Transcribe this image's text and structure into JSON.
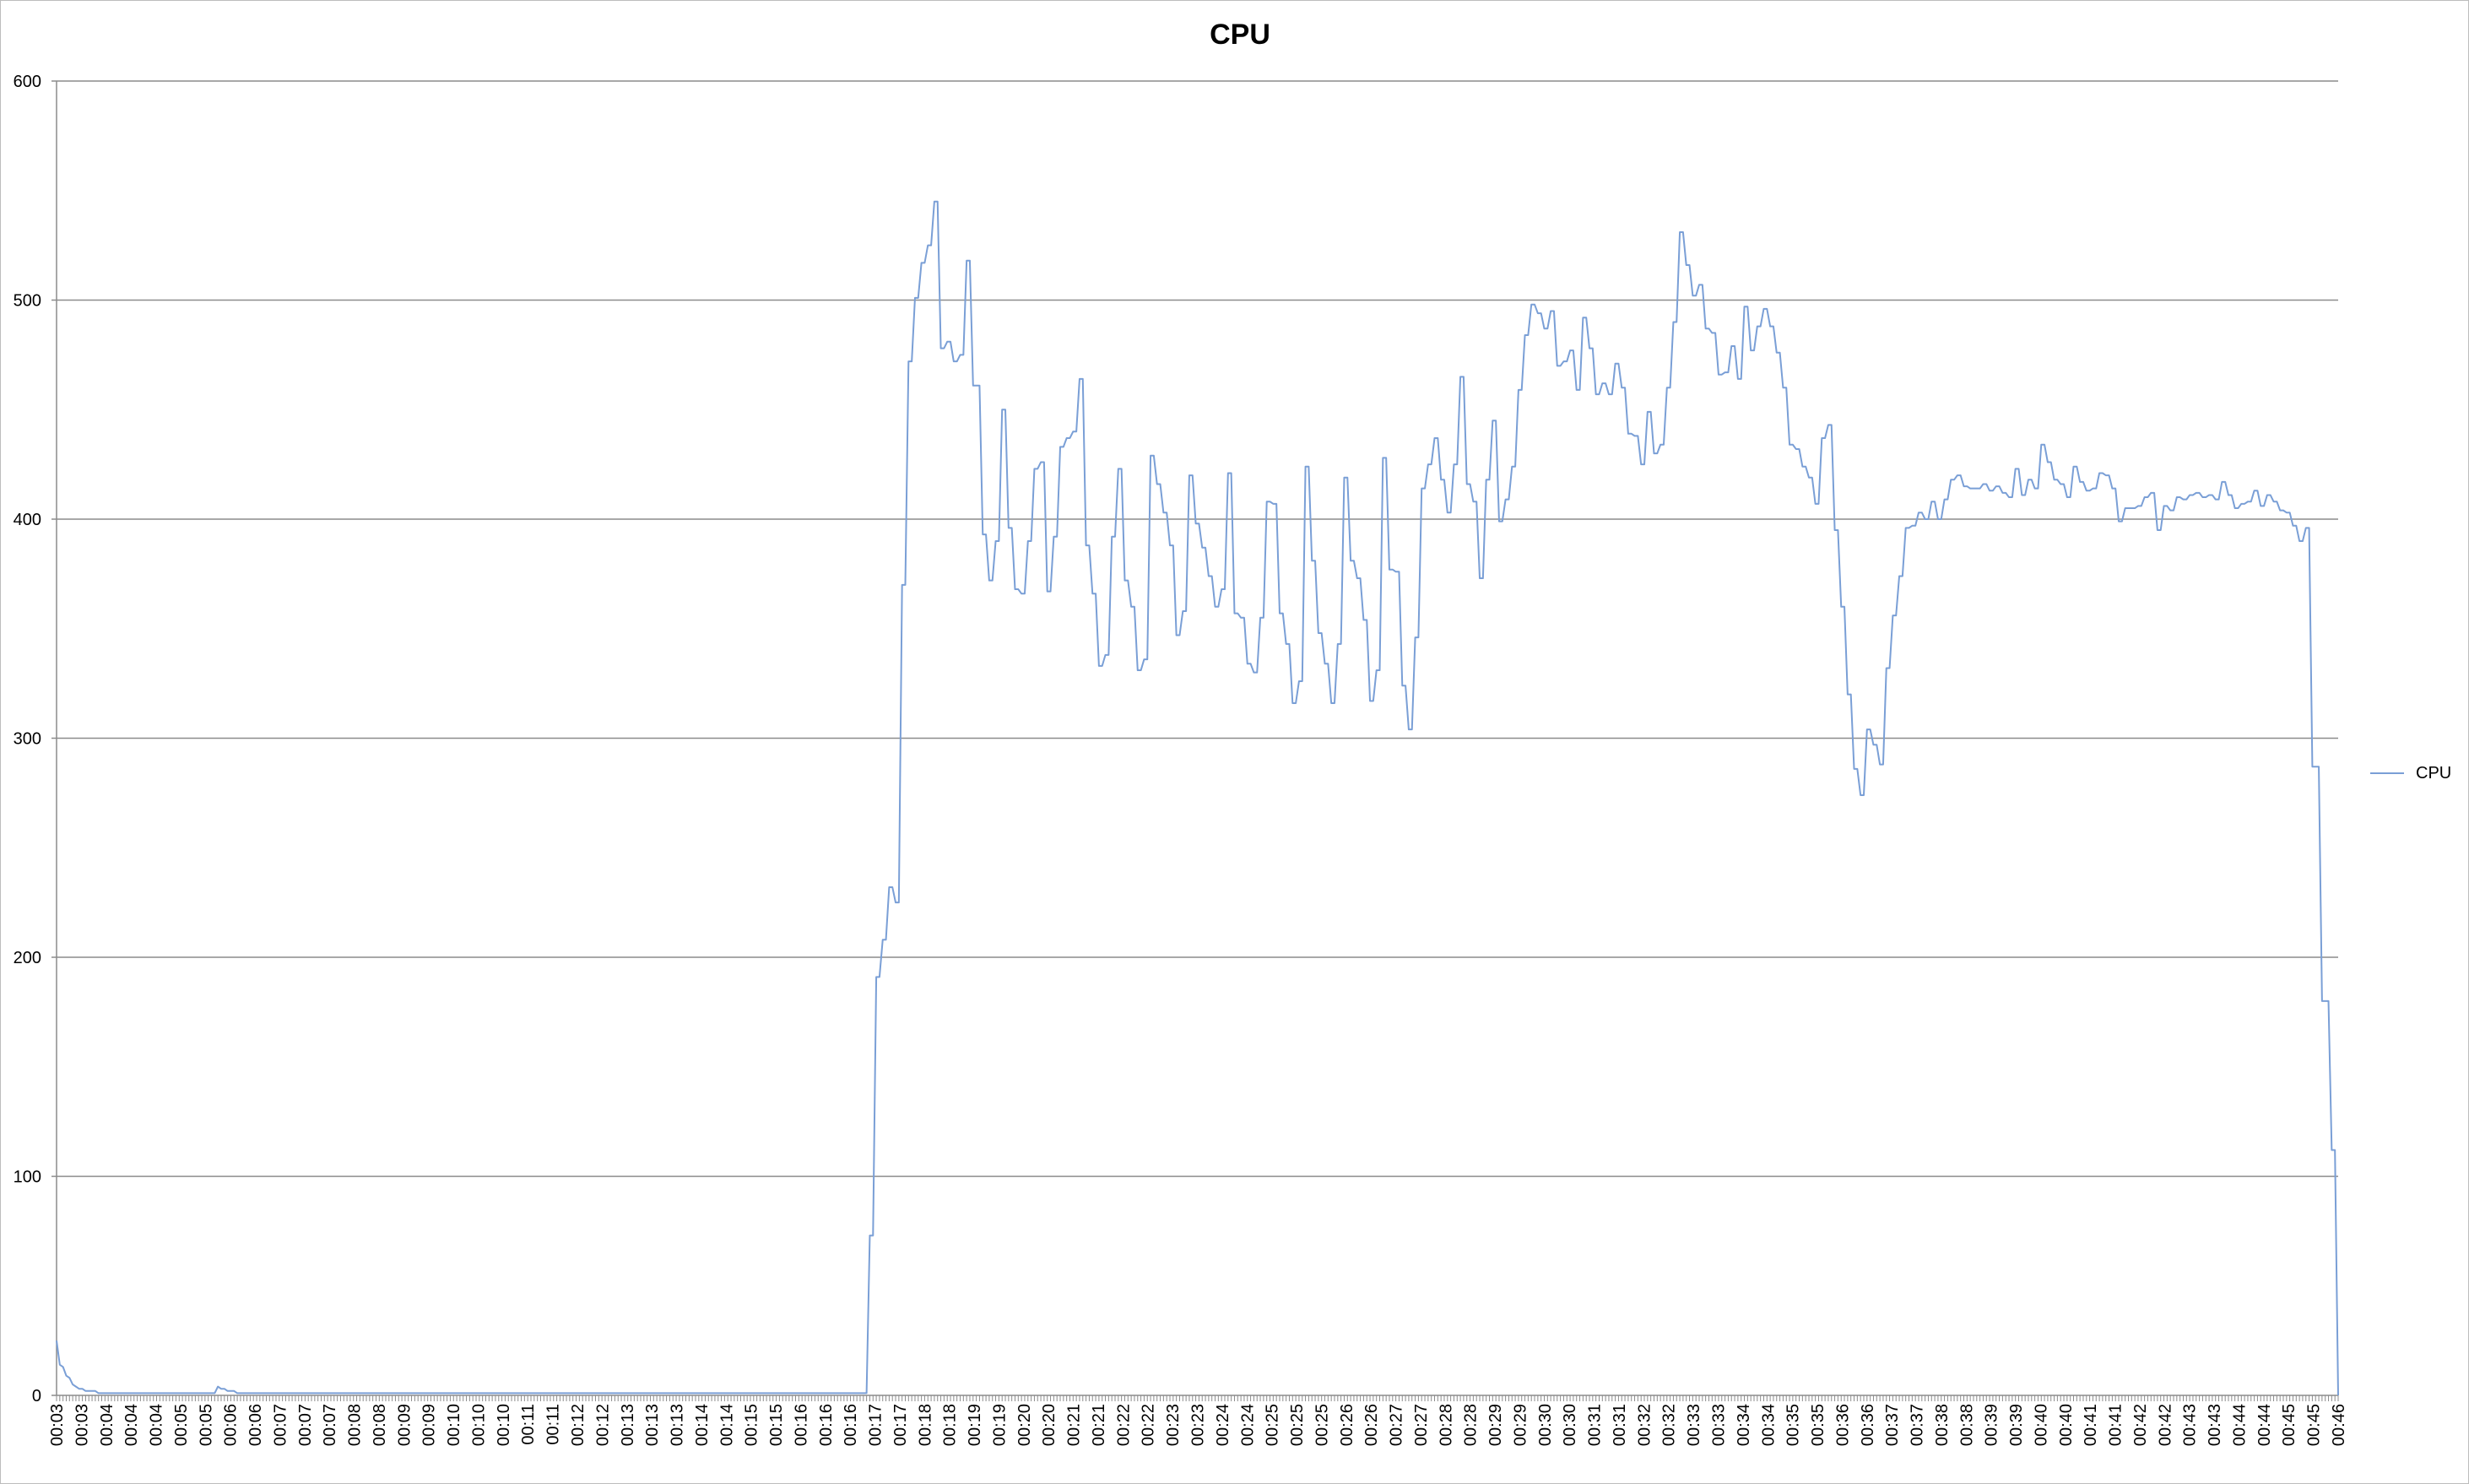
{
  "chart_data": {
    "type": "line",
    "title": "CPU",
    "xlabel": "",
    "ylabel": "",
    "ylim": [
      0,
      600
    ],
    "yticks": [
      0,
      100,
      200,
      300,
      400,
      500,
      600
    ],
    "grid": "horizontal",
    "legend_position": "right",
    "x_tick_labels": [
      "00:03",
      "00:03",
      "00:04",
      "00:04",
      "00:04",
      "00:05",
      "00:05",
      "00:06",
      "00:06",
      "00:07",
      "00:07",
      "00:07",
      "00:08",
      "00:08",
      "00:09",
      "00:09",
      "00:10",
      "00:10",
      "00:10",
      "00:11",
      "00:11",
      "00:12",
      "00:12",
      "00:13",
      "00:13",
      "00:13",
      "00:14",
      "00:14",
      "00:15",
      "00:15",
      "00:16",
      "00:16",
      "00:16",
      "00:17",
      "00:17",
      "00:18",
      "00:18",
      "00:19",
      "00:19",
      "00:20",
      "00:20",
      "00:21",
      "00:21",
      "00:22",
      "00:22",
      "00:23",
      "00:23",
      "00:24",
      "00:24",
      "00:25",
      "00:25",
      "00:25",
      "00:26",
      "00:26",
      "00:27",
      "00:27",
      "00:28",
      "00:28",
      "00:29",
      "00:29",
      "00:30",
      "00:30",
      "00:31",
      "00:31",
      "00:32",
      "00:32",
      "00:33",
      "00:33",
      "00:34",
      "00:34",
      "00:35",
      "00:35",
      "00:36",
      "00:36",
      "00:37",
      "00:37",
      "00:38",
      "00:38",
      "00:39",
      "00:39",
      "00:40",
      "00:40",
      "00:41",
      "00:41",
      "00:42",
      "00:42",
      "00:43",
      "00:43",
      "00:44",
      "00:44",
      "00:45",
      "00:45",
      "00:46"
    ],
    "series": [
      {
        "name": "CPU",
        "color": "#7a9fd6",
        "values": [
          25,
          14,
          13,
          9,
          8,
          5,
          4,
          3,
          3,
          2,
          2,
          2,
          2,
          1,
          1,
          1,
          1,
          1,
          1,
          1,
          1,
          1,
          1,
          1,
          1,
          1,
          1,
          1,
          1,
          1,
          1,
          1,
          1,
          1,
          1,
          1,
          1,
          1,
          1,
          1,
          1,
          1,
          1,
          1,
          1,
          1,
          1,
          1,
          1,
          1,
          4,
          3,
          3,
          2,
          2,
          2,
          1,
          1,
          1,
          1,
          1,
          1,
          1,
          1,
          1,
          1,
          1,
          1,
          1,
          1,
          1,
          1,
          1,
          1,
          1,
          1,
          1,
          1,
          1,
          1,
          1,
          1,
          1,
          1,
          1,
          1,
          1,
          1,
          1,
          1,
          1,
          1,
          1,
          1,
          1,
          1,
          1,
          1,
          1,
          1,
          1,
          1,
          1,
          1,
          1,
          1,
          1,
          1,
          1,
          1,
          1,
          1,
          1,
          1,
          1,
          1,
          1,
          1,
          1,
          1,
          1,
          1,
          1,
          1,
          1,
          1,
          1,
          1,
          1,
          1,
          1,
          1,
          1,
          1,
          1,
          1,
          1,
          1,
          1,
          1,
          1,
          1,
          1,
          1,
          1,
          1,
          1,
          1,
          1,
          1,
          1,
          1,
          1,
          1,
          1,
          1,
          1,
          1,
          1,
          1,
          1,
          1,
          1,
          1,
          1,
          1,
          1,
          1,
          1,
          1,
          1,
          1,
          1,
          1,
          1,
          1,
          1,
          1,
          1,
          1,
          1,
          1,
          1,
          1,
          1,
          1,
          1,
          1,
          1,
          1,
          1,
          1,
          1,
          1,
          1,
          1,
          1,
          1,
          1,
          1,
          1,
          1,
          1,
          1,
          1,
          1,
          1,
          1,
          1,
          1,
          1,
          1,
          1,
          1,
          1,
          1,
          1,
          1,
          1,
          1,
          1,
          1,
          1,
          1,
          1,
          1,
          1,
          1,
          1,
          1,
          1,
          1,
          1,
          1,
          1,
          1,
          1,
          1,
          1,
          1,
          1,
          1,
          1,
          1,
          1,
          1,
          1,
          1,
          1,
          1,
          1,
          1,
          73,
          73,
          191,
          191,
          208,
          208,
          232,
          232,
          225,
          225,
          370,
          370,
          472,
          472,
          501,
          501,
          517,
          517,
          525,
          525,
          545,
          545,
          478,
          478,
          481,
          481,
          472,
          472,
          475,
          475,
          518,
          518,
          461,
          461,
          461,
          393,
          393,
          372,
          372,
          390,
          390,
          450,
          450,
          396,
          396,
          368,
          368,
          366,
          366,
          390,
          390,
          423,
          423,
          426,
          426,
          367,
          367,
          392,
          392,
          433,
          433,
          437,
          437,
          440,
          440,
          464,
          464,
          388,
          388,
          366,
          366,
          333,
          333,
          338,
          338,
          392,
          392,
          423,
          423,
          372,
          372,
          360,
          360,
          331,
          331,
          336,
          336,
          429,
          429,
          416,
          416,
          403,
          403,
          388,
          388,
          347,
          347,
          358,
          358,
          420,
          420,
          398,
          398,
          387,
          387,
          374,
          374,
          360,
          360,
          368,
          368,
          421,
          421,
          357,
          357,
          355,
          355,
          334,
          334,
          330,
          330,
          355,
          355,
          408,
          408,
          407,
          407,
          357,
          357,
          343,
          343,
          316,
          316,
          326,
          326,
          424,
          424,
          381,
          381,
          348,
          348,
          334,
          334,
          316,
          316,
          343,
          343,
          419,
          419,
          381,
          381,
          373,
          373,
          354,
          354,
          317,
          317,
          331,
          331,
          428,
          428,
          377,
          377,
          376,
          376,
          324,
          324,
          304,
          304,
          346,
          346,
          414,
          414,
          425,
          425,
          437,
          437,
          418,
          418,
          403,
          403,
          425,
          425,
          465,
          465,
          416,
          416,
          408,
          408,
          373,
          373,
          418,
          418,
          445,
          445,
          399,
          399,
          409,
          409,
          424,
          424,
          459,
          459,
          484,
          484,
          498,
          498,
          494,
          494,
          487,
          487,
          495,
          495,
          470,
          470,
          472,
          472,
          477,
          477,
          459,
          459,
          492,
          492,
          478,
          478,
          457,
          457,
          462,
          462,
          457,
          457,
          471,
          471,
          460,
          460,
          439,
          439,
          438,
          438,
          425,
          425,
          449,
          449,
          430,
          430,
          434,
          434,
          460,
          460,
          490,
          490,
          531,
          531,
          516,
          516,
          502,
          502,
          507,
          507,
          487,
          487,
          485,
          485,
          466,
          466,
          467,
          467,
          479,
          479,
          464,
          464,
          497,
          497,
          477,
          477,
          488,
          488,
          496,
          496,
          488,
          488,
          476,
          476,
          460,
          460,
          434,
          434,
          432,
          432,
          424,
          424,
          419,
          419,
          407,
          407,
          437,
          437,
          443,
          443,
          395,
          395,
          360,
          360,
          320,
          320,
          286,
          286,
          274,
          274,
          304,
          304,
          297,
          297,
          288,
          288,
          332,
          332,
          356,
          356,
          374,
          374,
          396,
          396,
          397,
          397,
          403,
          403,
          400,
          400,
          408,
          408,
          400,
          400,
          409,
          409,
          418,
          418,
          420,
          420,
          415,
          415,
          414,
          414,
          414,
          414,
          416,
          416,
          413,
          413,
          415,
          415,
          412,
          412,
          410,
          410,
          423,
          423,
          411,
          411,
          418,
          418,
          414,
          414,
          434,
          434,
          426,
          426,
          418,
          418,
          416,
          416,
          410,
          410,
          424,
          424,
          417,
          417,
          413,
          413,
          414,
          414,
          421,
          421,
          420,
          420,
          414,
          414,
          399,
          399,
          405,
          405,
          405,
          405,
          406,
          406,
          410,
          410,
          412,
          412,
          395,
          395,
          406,
          406,
          404,
          404,
          410,
          410,
          409,
          409,
          411,
          411,
          412,
          412,
          410,
          410,
          411,
          411,
          409,
          409,
          417,
          417,
          411,
          411,
          405,
          405,
          407,
          407,
          408,
          408,
          413,
          413,
          406,
          406,
          411,
          411,
          408,
          408,
          404,
          404,
          403,
          403,
          397,
          397,
          390,
          390,
          396,
          396,
          287,
          287,
          287,
          180,
          180,
          180,
          112,
          112,
          0
        ]
      }
    ]
  }
}
